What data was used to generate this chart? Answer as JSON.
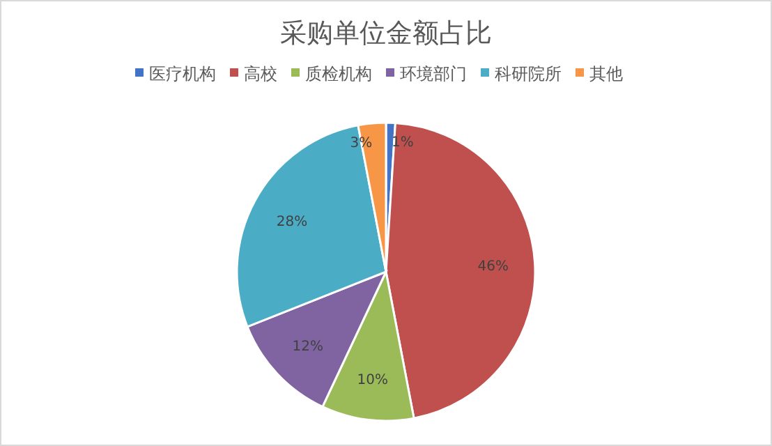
{
  "chart_data": {
    "type": "pie",
    "title": "采购单位金额占比",
    "categories": [
      "医疗机构",
      "高校",
      "质检机构",
      "环境部门",
      "科研院所",
      "其他"
    ],
    "values": [
      1,
      46,
      10,
      12,
      28,
      3
    ],
    "colors": [
      "#4472c4",
      "#c0504d",
      "#9bbb59",
      "#8064a2",
      "#4bacc6",
      "#f79646"
    ],
    "value_labels": [
      "1%",
      "46%",
      "10%",
      "12%",
      "28%",
      "3%"
    ],
    "legend": "top"
  }
}
